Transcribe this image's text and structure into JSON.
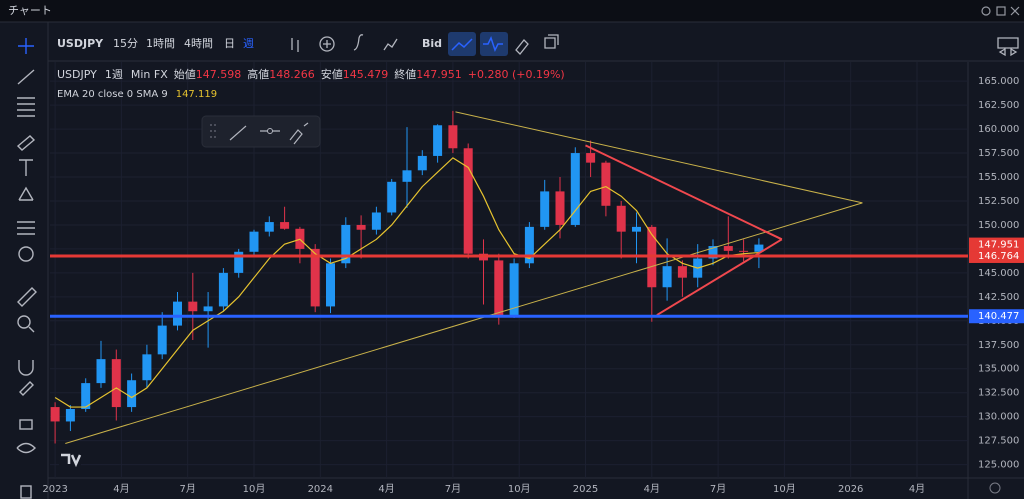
{
  "window": {
    "title": "チャート"
  },
  "toolbar": {
    "symbol": "USDJPY",
    "intervals": [
      "15分",
      "1時間",
      "4時間",
      "日",
      "週"
    ],
    "price_type": "Bid"
  },
  "legend": {
    "symbol": "USDJPY",
    "interval": "1週",
    "source": "Min FX",
    "open_label": "始値",
    "open": "147.598",
    "high_label": "高値",
    "high": "148.266",
    "low_label": "安値",
    "low": "145.479",
    "close_label": "終値",
    "close": "147.951",
    "change": "+0.280 (+0.19%)"
  },
  "indicator": {
    "label": "EMA 20 close 0 SMA 9",
    "value": "147.119"
  },
  "chart": {
    "type": "candlestick",
    "up_color": "#2196f3",
    "down_color": "#e0334a",
    "x": [
      0,
      3,
      6,
      9,
      12,
      15,
      18,
      21,
      24,
      27,
      30,
      33,
      36,
      39,
      42,
      45,
      48,
      51,
      54,
      57,
      60,
      63,
      66,
      69,
      72,
      75,
      78,
      81,
      84,
      87,
      90,
      93,
      96,
      99,
      102,
      105,
      108,
      111,
      114,
      117,
      120,
      123,
      126,
      129,
      132,
      135,
      138
    ],
    "candles": [
      [
        131,
        131.5,
        127.2,
        129.5
      ],
      [
        129.5,
        131.2,
        128.5,
        130.8
      ],
      [
        130.8,
        134,
        130.5,
        133.5
      ],
      [
        133.5,
        137.9,
        133,
        136
      ],
      [
        136,
        137,
        129.6,
        131
      ],
      [
        131,
        134.5,
        130.5,
        133.8
      ],
      [
        133.8,
        137.5,
        133,
        136.5
      ],
      [
        136.5,
        140.9,
        136,
        139.5
      ],
      [
        139.5,
        143,
        139,
        142
      ],
      [
        142,
        145,
        138,
        141
      ],
      [
        141,
        143,
        137.2,
        141.5
      ],
      [
        141.5,
        145.5,
        141,
        145
      ],
      [
        145,
        147.5,
        144.5,
        147.2
      ],
      [
        147.2,
        149.5,
        146.8,
        149.3
      ],
      [
        149.3,
        150.9,
        148.8,
        150.3
      ],
      [
        150.3,
        151.9,
        149.5,
        149.6
      ],
      [
        149.6,
        149.8,
        146,
        147.5
      ],
      [
        147.5,
        148,
        140.9,
        141.5
      ],
      [
        141.5,
        146.5,
        140.8,
        146
      ],
      [
        146,
        150.8,
        145.5,
        150
      ],
      [
        150,
        151,
        146.5,
        149.5
      ],
      [
        149.5,
        151.9,
        149,
        151.3
      ],
      [
        151.3,
        154.8,
        151,
        154.5
      ],
      [
        154.5,
        160.2,
        151.8,
        155.7
      ],
      [
        155.7,
        157.8,
        155.2,
        157.2
      ],
      [
        157.2,
        160.5,
        156.5,
        160.4
      ],
      [
        160.4,
        161.9,
        157.5,
        158
      ],
      [
        158,
        158.5,
        146.5,
        147
      ],
      [
        147,
        148.5,
        141.7,
        146.3
      ],
      [
        146.3,
        147,
        139.6,
        140.6
      ],
      [
        140.6,
        146.5,
        140.3,
        146
      ],
      [
        146,
        150.3,
        145.5,
        149.8
      ],
      [
        149.8,
        154.7,
        149.5,
        153.5
      ],
      [
        153.5,
        155,
        148.6,
        150
      ],
      [
        150,
        158.1,
        149.8,
        157.5
      ],
      [
        157.5,
        158.8,
        155,
        156.5
      ],
      [
        156.5,
        156.7,
        150.9,
        152
      ],
      [
        152,
        152.5,
        146.5,
        149.3
      ],
      [
        149.3,
        151.3,
        146,
        149.8
      ],
      [
        149.8,
        150,
        139.9,
        143.5
      ],
      [
        143.5,
        148.6,
        142.1,
        145.7
      ],
      [
        145.7,
        146.3,
        142.5,
        144.5
      ],
      [
        144.5,
        148,
        143.5,
        146.5
      ],
      [
        146.5,
        148.5,
        145.8,
        147.8
      ],
      [
        147.8,
        150.9,
        146.5,
        147.3
      ],
      [
        147.3,
        148.5,
        146.2,
        147.2
      ],
      [
        147.2,
        148.6,
        145.5,
        147.951
      ]
    ],
    "ema": {
      "color": "#e6c32f",
      "values": [
        132,
        131,
        131,
        132,
        133,
        132,
        133,
        135,
        137,
        139,
        140,
        141,
        142.5,
        144.5,
        146.5,
        148,
        148.5,
        147,
        146,
        146.5,
        147.5,
        148.5,
        150,
        152,
        154,
        155.5,
        157,
        156,
        153,
        149.5,
        147,
        146.5,
        148,
        149.5,
        151.5,
        153.5,
        154,
        153,
        151.5,
        149,
        147,
        146,
        145.5,
        146,
        146.8,
        147,
        147.119
      ]
    },
    "levels": [
      {
        "value": 146.764,
        "color": "#e53935"
      },
      {
        "value": 140.477,
        "color": "#2962ff"
      }
    ],
    "last_price": {
      "value": 147.951,
      "color": "#e53935"
    },
    "trendlines": [
      {
        "color": "#c9b24a",
        "points": [
          [
            2,
            127.2
          ],
          [
            158.3,
            152.3
          ]
        ]
      },
      {
        "color": "#c9b24a",
        "points": [
          [
            78.5,
            161.8
          ],
          [
            158.3,
            152.3
          ]
        ]
      },
      {
        "color": "#f0484e",
        "points": [
          [
            104,
            158.3
          ],
          [
            142.5,
            148.5
          ]
        ]
      },
      {
        "color": "#f0484e",
        "points": [
          [
            118,
            140.6
          ],
          [
            142.5,
            148.5
          ]
        ]
      }
    ],
    "xlim": [
      -1,
      179
    ],
    "ylim": [
      123.6,
      167
    ],
    "xticks": [
      {
        "value": 0,
        "label": "2023"
      },
      {
        "value": 13,
        "label": "4月"
      },
      {
        "value": 26,
        "label": "7月"
      },
      {
        "value": 39,
        "label": "10月"
      },
      {
        "value": 52,
        "label": "2024"
      },
      {
        "value": 65,
        "label": "4月"
      },
      {
        "value": 78,
        "label": "7月"
      },
      {
        "value": 91,
        "label": "10月"
      },
      {
        "value": 104,
        "label": "2025"
      },
      {
        "value": 117,
        "label": "4月"
      },
      {
        "value": 130,
        "label": "7月"
      },
      {
        "value": 143,
        "label": "10月"
      },
      {
        "value": 156,
        "label": "2026"
      },
      {
        "value": 169,
        "label": "4月"
      }
    ],
    "yticks": [
      {
        "value": 125,
        "label": "125.000"
      },
      {
        "value": 127.5,
        "label": "127.500"
      },
      {
        "value": 130,
        "label": "130.000"
      },
      {
        "value": 132.5,
        "label": "132.500"
      },
      {
        "value": 135,
        "label": "135.000"
      },
      {
        "value": 137.5,
        "label": "137.500"
      },
      {
        "value": 140,
        "label": "140.000"
      },
      {
        "value": 142.5,
        "label": "142.500"
      },
      {
        "value": 145,
        "label": "145.000"
      },
      {
        "value": 147.5,
        "label": "147.500"
      },
      {
        "value": 150,
        "label": "150.000"
      },
      {
        "value": 152.5,
        "label": "152.500"
      },
      {
        "value": 155,
        "label": "155.000"
      },
      {
        "value": 157.5,
        "label": "157.500"
      },
      {
        "value": 160,
        "label": "160.000"
      },
      {
        "value": 162.5,
        "label": "162.500"
      },
      {
        "value": 165,
        "label": "165.000"
      }
    ]
  }
}
